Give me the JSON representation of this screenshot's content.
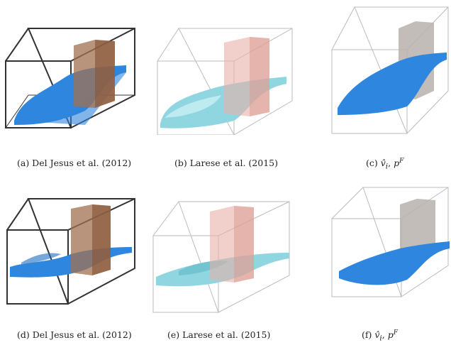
{
  "captions": {
    "a": "(a)  Del Jesus et al. (2012)",
    "b": "(b)  Larese et al. (2015)",
    "c_prefix": "(c)  ",
    "c_math": "v̂",
    "c_sub": "i",
    "c_mid": ", ",
    "c_p": "p",
    "c_sup": "F",
    "d": "(d)  Del Jesus et al. (2012)",
    "e": "(e)  Larese et al. (2015)",
    "f_prefix": "(f)  ",
    "f_math": "v̂",
    "f_sub": "i",
    "f_mid": ", ",
    "f_p": "p",
    "f_sup": "F"
  },
  "colors": {
    "water_blue": "#2f86de",
    "water_light": "#8fd6e0",
    "obstacle_brown": "#a07050",
    "obstacle_pink": "#e8b0a8",
    "obstacle_gray": "#b8b2ad"
  }
}
